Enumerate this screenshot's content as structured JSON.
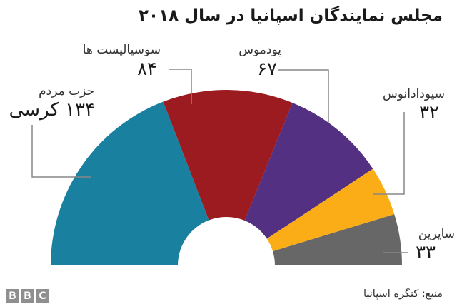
{
  "title": "مجلس نمایندگان اسپانیا در سال ۲۰۱۸",
  "chart_data": {
    "type": "pie",
    "subtype": "half-donut-hemicycle",
    "title": "مجلس نمایندگان اسپانیا در سال ۲۰۱۸",
    "total_seats": 350,
    "angle_span_degrees": 180,
    "order": "left-to-right",
    "series": [
      {
        "id": "peoples-party",
        "label": "حزب مردم",
        "value_label": "۱۳۴ کرسی",
        "seats": 134,
        "color": "#1a80a0"
      },
      {
        "id": "socialists",
        "label": "سوسیالیست ها",
        "value_label": "۸۴",
        "seats": 84,
        "color": "#9c1b20"
      },
      {
        "id": "podemos",
        "label": "پودموس",
        "value_label": "۶۷",
        "seats": 67,
        "color": "#543082"
      },
      {
        "id": "ciudadanos",
        "label": "سیودادانوس",
        "value_label": "۳۲",
        "seats": 32,
        "color": "#fbad17"
      },
      {
        "id": "others",
        "label": "سایرین",
        "value_label": "۳۳",
        "seats": 33,
        "color": "#676767"
      }
    ]
  },
  "footer": {
    "source": "منبع: کنگره اسپانیا",
    "logo_letters": {
      "b1": "B",
      "b2": "B",
      "c": "C"
    }
  }
}
